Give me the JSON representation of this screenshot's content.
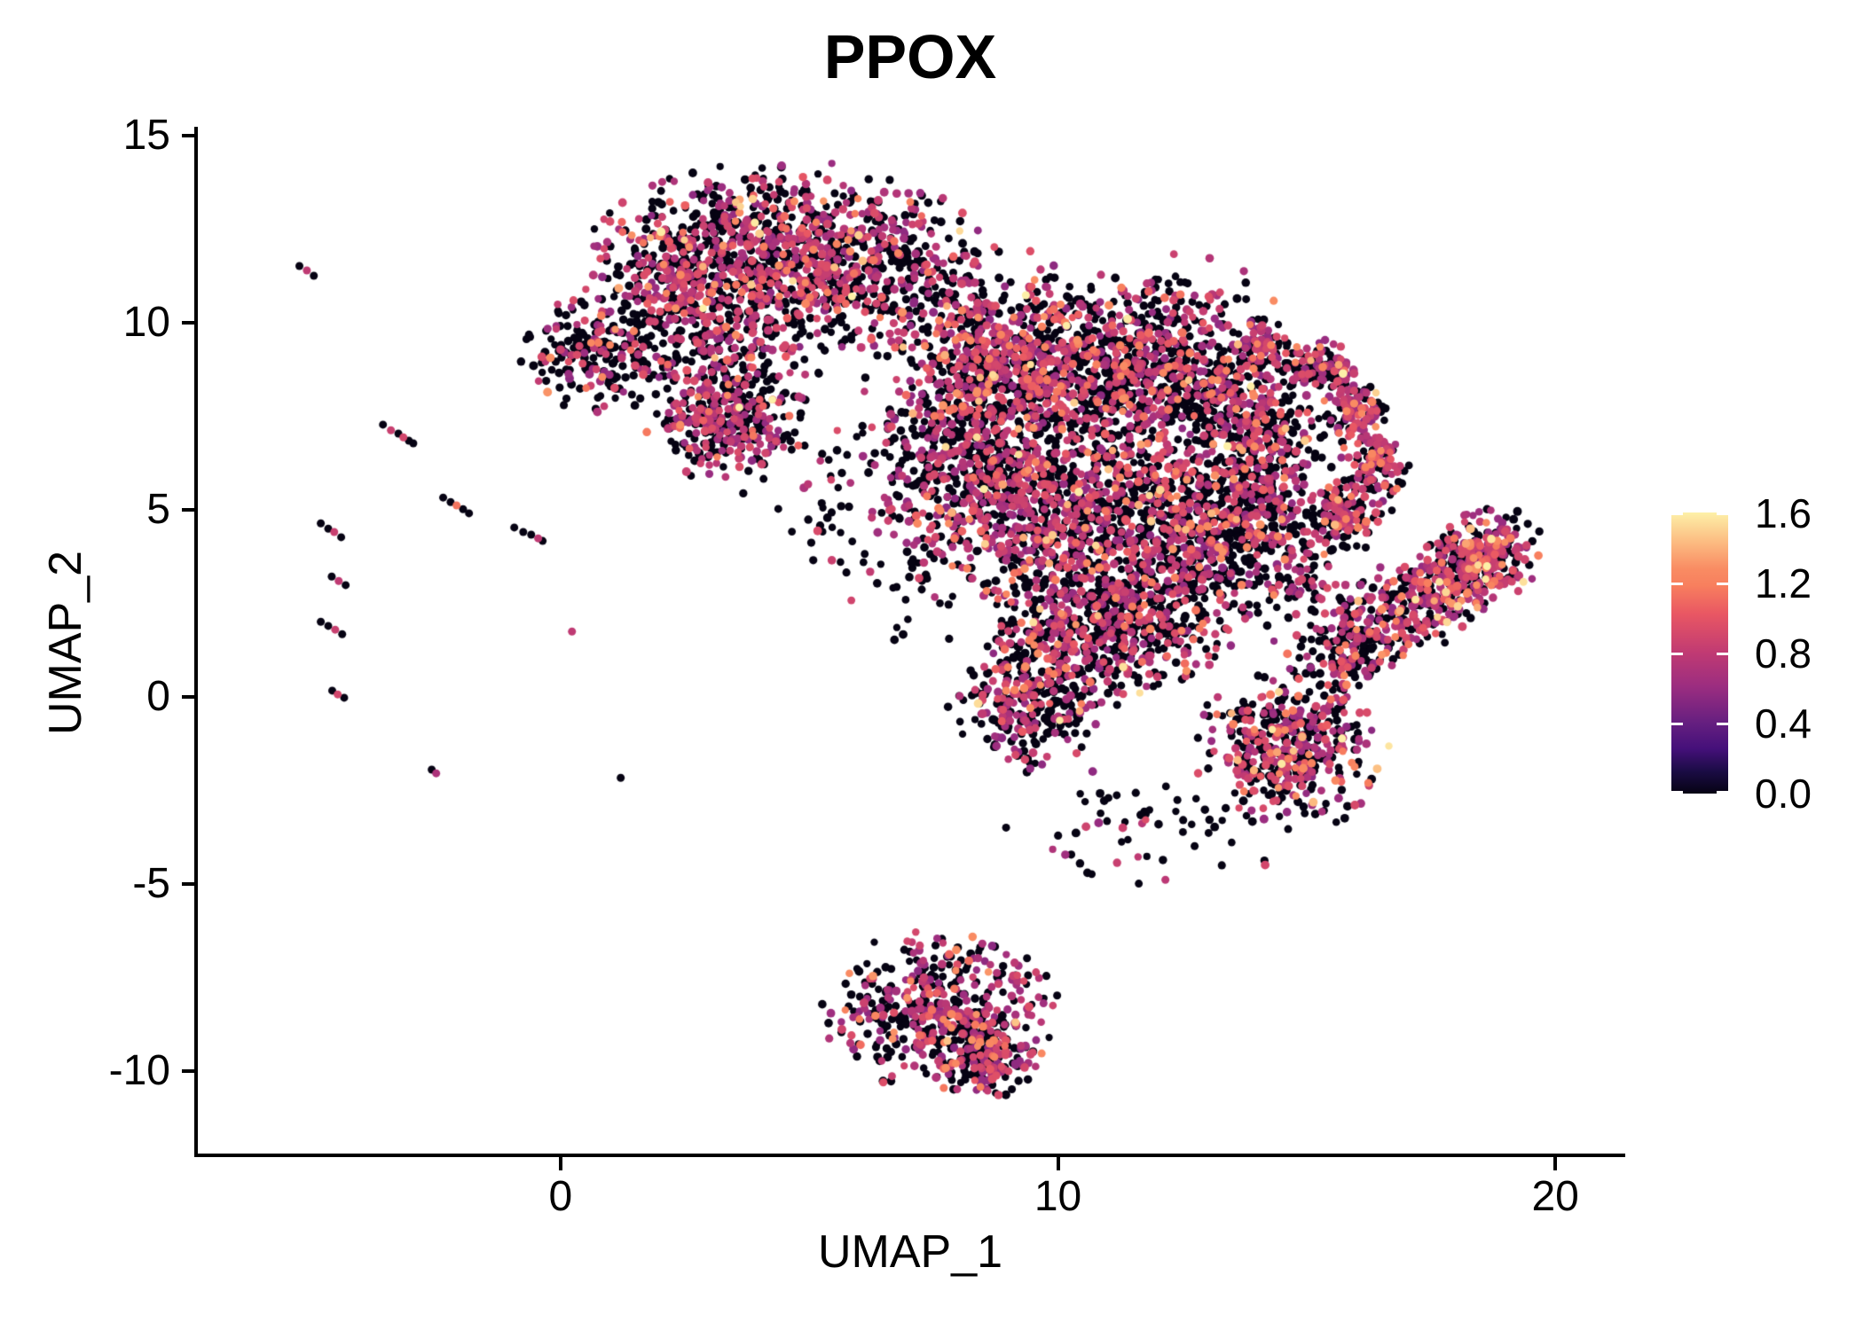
{
  "figure": {
    "background": "#ffffff",
    "axis_color": "#000000",
    "text_color": "#000000"
  },
  "chart_data": {
    "type": "scatter",
    "title": "PPOX",
    "subtitle": "",
    "xlabel": "UMAP_1",
    "ylabel": "UMAP_2",
    "xlim": [
      -7.31,
      21.37
    ],
    "ylim": [
      -12.25,
      15.24
    ],
    "x_ticks": [
      "0",
      "10",
      "20"
    ],
    "x_tick_values": [
      0,
      10,
      20
    ],
    "y_ticks": [
      "15",
      "10",
      "5",
      "0",
      "-5",
      "-10"
    ],
    "y_tick_values": [
      15,
      10,
      5,
      0,
      -5,
      -10
    ],
    "grid": false,
    "point_radius_px": 4.5,
    "legend": {
      "position": "right",
      "colormap": "magma",
      "range": [
        0,
        1.607
      ],
      "tick_labels": [
        "1.6",
        "1.2",
        "0.8",
        "0.4",
        "0.0"
      ],
      "tick_values": [
        1.6,
        1.2,
        0.8,
        0.4,
        0.0
      ]
    },
    "palette_stops": [
      [
        0.0,
        "#060313"
      ],
      [
        0.08,
        "#1b0c45"
      ],
      [
        0.16,
        "#45107a"
      ],
      [
        0.25,
        "#651f80"
      ],
      [
        0.38,
        "#9b2d80"
      ],
      [
        0.5,
        "#c03a73"
      ],
      [
        0.64,
        "#e95763"
      ],
      [
        0.74,
        "#f87f5e"
      ],
      [
        0.8,
        "#f98c63"
      ],
      [
        0.9,
        "#fcbe83"
      ],
      [
        1.0,
        "#fdf0a8"
      ]
    ],
    "cluster_columns": [
      "center_u",
      "center_v",
      "radius_u",
      "radius_v",
      "rot_deg",
      "n_cells",
      "frac_zero",
      "frac_mid",
      "frac_high",
      "frac_top"
    ],
    "clusters": [
      [
        4.69,
        11.75,
        3.21,
        2.01,
        -3,
        1150,
        0.5,
        0.42,
        0.07,
        0.01
      ],
      [
        2.28,
        10.81,
        0.98,
        1.3,
        0,
        150,
        0.52,
        0.42,
        0.05,
        0.01
      ],
      [
        3.35,
        8.32,
        1.43,
        2.25,
        0,
        330,
        0.55,
        0.39,
        0.05,
        0.01
      ],
      [
        3.27,
        7.37,
        1.16,
        1.07,
        0,
        180,
        0.5,
        0.44,
        0.05,
        0.01
      ],
      [
        0.86,
        9.27,
        1.34,
        1.3,
        0,
        230,
        0.66,
        0.3,
        0.04,
        0.0
      ],
      [
        8.08,
        10.57,
        0.8,
        1.54,
        0,
        60,
        0.6,
        0.35,
        0.05,
        0.0
      ],
      [
        5.94,
        5.83,
        1.5,
        2.8,
        0,
        80,
        0.65,
        0.32,
        0.03,
        0.0
      ],
      [
        8.97,
        8.79,
        1.87,
        1.9,
        0,
        700,
        0.48,
        0.4,
        0.1,
        0.02
      ],
      [
        11.92,
        8.67,
        2.05,
        2.01,
        0,
        750,
        0.55,
        0.33,
        0.1,
        0.02
      ],
      [
        9.6,
        5.24,
        2.32,
        2.01,
        0,
        800,
        0.52,
        0.4,
        0.07,
        0.01
      ],
      [
        12.99,
        4.64,
        2.23,
        2.37,
        0,
        950,
        0.62,
        0.31,
        0.06,
        0.01
      ],
      [
        10.94,
        2.04,
        2.05,
        1.78,
        0,
        650,
        0.55,
        0.38,
        0.06,
        0.01
      ],
      [
        9.51,
        -0.21,
        1.34,
        1.54,
        0,
        280,
        0.58,
        0.35,
        0.06,
        0.01
      ],
      [
        14.68,
        -1.4,
        1.52,
        1.78,
        0,
        450,
        0.5,
        0.36,
        0.11,
        0.03
      ],
      [
        7.9,
        6.78,
        1.07,
        1.66,
        0,
        180,
        0.6,
        0.35,
        0.05,
        0.0
      ],
      [
        14.06,
        7.25,
        1.07,
        1.42,
        0,
        200,
        0.5,
        0.4,
        0.09,
        0.01
      ],
      [
        14.06,
        9.38,
        0.62,
        0.59,
        0,
        85,
        0.38,
        0.5,
        0.1,
        0.02
      ],
      [
        15.16,
        8.79,
        0.71,
        0.66,
        0,
        110,
        0.38,
        0.5,
        0.1,
        0.02
      ],
      [
        15.97,
        7.61,
        0.62,
        0.71,
        0,
        110,
        0.38,
        0.5,
        0.1,
        0.02
      ],
      [
        16.36,
        6.18,
        0.54,
        0.83,
        0,
        110,
        0.38,
        0.5,
        0.1,
        0.02
      ],
      [
        15.81,
        4.88,
        0.71,
        0.76,
        0,
        120,
        0.38,
        0.5,
        0.1,
        0.02
      ],
      [
        17.45,
        2.75,
        2.32,
        0.95,
        44,
        420,
        0.48,
        0.42,
        0.08,
        0.02
      ],
      [
        18.52,
        3.74,
        0.89,
        1.0,
        0,
        200,
        0.28,
        0.58,
        0.11,
        0.03
      ],
      [
        15.84,
        1.21,
        0.8,
        0.83,
        0,
        90,
        0.6,
        0.35,
        0.05,
        0.0
      ],
      [
        7.64,
        -8.39,
        1.87,
        1.71,
        0,
        480,
        0.52,
        0.39,
        0.08,
        0.01
      ],
      [
        8.53,
        -9.76,
        0.8,
        0.9,
        0,
        130,
        0.52,
        0.39,
        0.08,
        0.01
      ],
      [
        11.56,
        -3.41,
        2.68,
        1.42,
        0,
        60,
        0.7,
        0.27,
        0.03,
        0.0
      ],
      [
        15.66,
        2.04,
        1.07,
        1.42,
        0,
        50,
        0.6,
        0.37,
        0.03,
        0.0
      ],
      [
        14.77,
        3.46,
        0.71,
        0.95,
        0,
        30,
        0.6,
        0.37,
        0.03,
        0.0
      ],
      [
        10.85,
        10.81,
        2.85,
        0.95,
        0,
        50,
        0.55,
        0.4,
        0.05,
        0.0
      ],
      [
        7.28,
        3.93,
        0.89,
        2.13,
        0,
        50,
        0.65,
        0.32,
        0.03,
        0.0
      ]
    ],
    "point_columns": [
      "umap_1",
      "umap_2",
      "expression"
    ],
    "points": [
      [
        -5.25,
        11.52,
        0
      ],
      [
        -5.1,
        11.4,
        0.8
      ],
      [
        -4.96,
        11.26,
        0
      ],
      [
        -3.57,
        7.28,
        0
      ],
      [
        -3.41,
        7.13,
        0.85
      ],
      [
        -3.26,
        7.04,
        0
      ],
      [
        -3.16,
        6.94,
        0.9
      ],
      [
        -3.05,
        6.85,
        0
      ],
      [
        -2.96,
        6.78,
        0
      ],
      [
        -2.36,
        5.33,
        0
      ],
      [
        -2.21,
        5.21,
        0
      ],
      [
        -2.09,
        5.12,
        1.15
      ],
      [
        -1.96,
        5.02,
        0
      ],
      [
        -1.84,
        4.91,
        0
      ],
      [
        -4.82,
        4.64,
        0
      ],
      [
        -4.67,
        4.5,
        0
      ],
      [
        -4.55,
        4.41,
        0.85
      ],
      [
        -4.41,
        4.27,
        0
      ],
      [
        -0.93,
        4.53,
        0
      ],
      [
        -0.75,
        4.41,
        0
      ],
      [
        -0.59,
        4.34,
        0
      ],
      [
        -0.45,
        4.24,
        0.8
      ],
      [
        -0.36,
        4.17,
        0
      ],
      [
        -4.6,
        3.22,
        0
      ],
      [
        -4.46,
        3.1,
        0.8
      ],
      [
        -4.32,
        2.99,
        0
      ],
      [
        -4.82,
        2.01,
        0
      ],
      [
        -4.67,
        1.9,
        0
      ],
      [
        -4.53,
        1.8,
        0.85
      ],
      [
        -4.39,
        1.68,
        0
      ],
      [
        -4.59,
        0.17,
        0
      ],
      [
        -4.48,
        0.07,
        0.9
      ],
      [
        -4.35,
        -0.02,
        0
      ],
      [
        0.23,
        1.75,
        0.8
      ],
      [
        -2.59,
        -1.94,
        0
      ],
      [
        -2.5,
        -2.04,
        0.7
      ],
      [
        1.21,
        -2.16,
        0
      ],
      [
        8.88,
        -7.39,
        0
      ],
      [
        9.15,
        -7.44,
        0
      ],
      [
        9.4,
        -7.44,
        0
      ],
      [
        9.62,
        -7.51,
        0.75
      ]
    ]
  }
}
